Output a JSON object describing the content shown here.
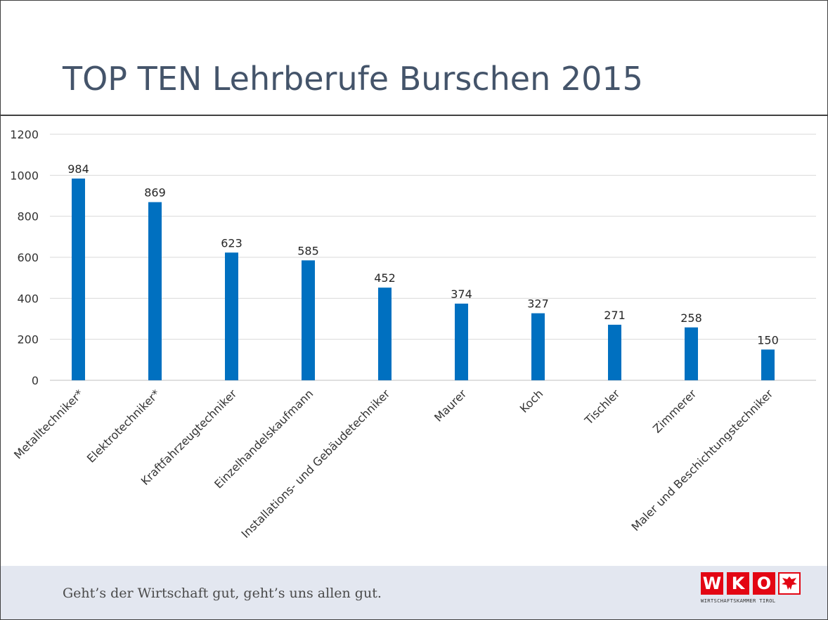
{
  "slide": {
    "title": "TOP TEN Lehrberufe Burschen 2015",
    "slogan": "Geht’s der Wirtschaft gut, geht’s uns allen gut.",
    "logo": {
      "letters": [
        "W",
        "K",
        "O"
      ],
      "subtitle": "WIRTSCHAFTSKAMMER TIROL",
      "crest": "tyrolean-eagle-icon"
    }
  },
  "colors": {
    "bar": "#0070c0",
    "title": "#44546a",
    "gridline": "#d9d9d9",
    "footer_bg": "#e3e7f0",
    "logo_red": "#e30613"
  },
  "chart_data": {
    "type": "bar",
    "title": "TOP TEN Lehrberufe Burschen 2015",
    "xlabel": "",
    "ylabel": "",
    "ylim": [
      0,
      1200
    ],
    "yticks": [
      0,
      200,
      400,
      600,
      800,
      1000,
      1200
    ],
    "grid": true,
    "legend": "none",
    "categories": [
      "Metalltechniker*",
      "Elektrotechniker*",
      "Kraftfahrzeugtechniker",
      "Einzelhandelskaufmann",
      "Installations- und Gebäudetechniker",
      "Maurer",
      "Koch",
      "Tischler",
      "Zimmerer",
      "Maler und Beschichtungstechniker"
    ],
    "values": [
      984,
      869,
      623,
      585,
      452,
      374,
      327,
      271,
      258,
      150
    ]
  }
}
